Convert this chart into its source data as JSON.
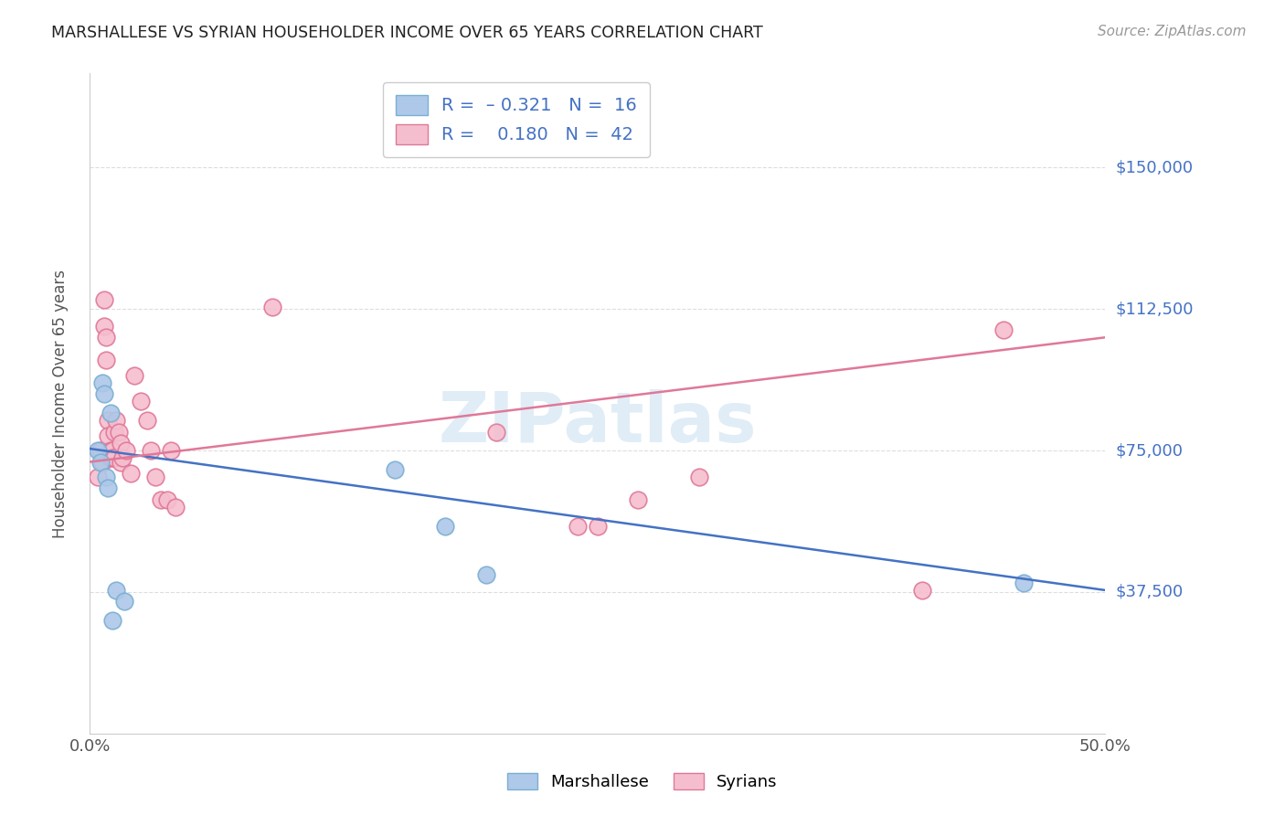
{
  "title": "MARSHALLESE VS SYRIAN HOUSEHOLDER INCOME OVER 65 YEARS CORRELATION CHART",
  "source": "Source: ZipAtlas.com",
  "ylabel": "Householder Income Over 65 years",
  "xlim": [
    0.0,
    0.5
  ],
  "ylim": [
    0,
    175000
  ],
  "yticks": [
    37500,
    75000,
    112500,
    150000
  ],
  "ytick_labels": [
    "$37,500",
    "$75,000",
    "$112,500",
    "$150,000"
  ],
  "xticks": [
    0.0,
    0.1,
    0.2,
    0.3,
    0.4,
    0.5
  ],
  "xtick_labels": [
    "0.0%",
    "",
    "",
    "",
    "",
    "50.0%"
  ],
  "marshallese_color": "#adc8e8",
  "marshallese_edge": "#7bafd4",
  "syrian_color": "#f5bece",
  "syrian_edge": "#e07898",
  "blue_line_color": "#4472c4",
  "pink_line_color": "#e07898",
  "watermark": "ZIPatlas",
  "marshallese_x": [
    0.004,
    0.005,
    0.006,
    0.007,
    0.008,
    0.009,
    0.01,
    0.011,
    0.013,
    0.017,
    0.15,
    0.175,
    0.195,
    0.46
  ],
  "marshallese_y": [
    75000,
    72000,
    93000,
    90000,
    68000,
    65000,
    85000,
    30000,
    38000,
    35000,
    70000,
    55000,
    42000,
    40000
  ],
  "syrian_x": [
    0.004,
    0.005,
    0.006,
    0.007,
    0.007,
    0.008,
    0.008,
    0.009,
    0.009,
    0.01,
    0.01,
    0.011,
    0.011,
    0.012,
    0.012,
    0.013,
    0.014,
    0.015,
    0.015,
    0.016,
    0.018,
    0.02,
    0.022,
    0.025,
    0.028,
    0.03,
    0.032,
    0.035,
    0.038,
    0.04,
    0.042,
    0.09,
    0.2,
    0.24,
    0.25,
    0.27,
    0.3,
    0.41,
    0.45
  ],
  "syrian_y": [
    68000,
    75000,
    72000,
    115000,
    108000,
    105000,
    99000,
    83000,
    79000,
    75000,
    73000,
    75000,
    73000,
    80000,
    73000,
    83000,
    80000,
    77000,
    72000,
    73000,
    75000,
    69000,
    95000,
    88000,
    83000,
    75000,
    68000,
    62000,
    62000,
    75000,
    60000,
    113000,
    80000,
    55000,
    55000,
    62000,
    68000,
    38000,
    107000
  ],
  "marshallese_line": {
    "x0": 0.0,
    "y0": 75500,
    "x1": 0.5,
    "y1": 38000
  },
  "syrian_line": {
    "x0": 0.0,
    "y0": 72000,
    "x1": 0.5,
    "y1": 105000
  },
  "background_color": "#ffffff",
  "grid_color": "#dddddd",
  "legend_text_color": "#333333",
  "legend_value_color": "#4472c4"
}
